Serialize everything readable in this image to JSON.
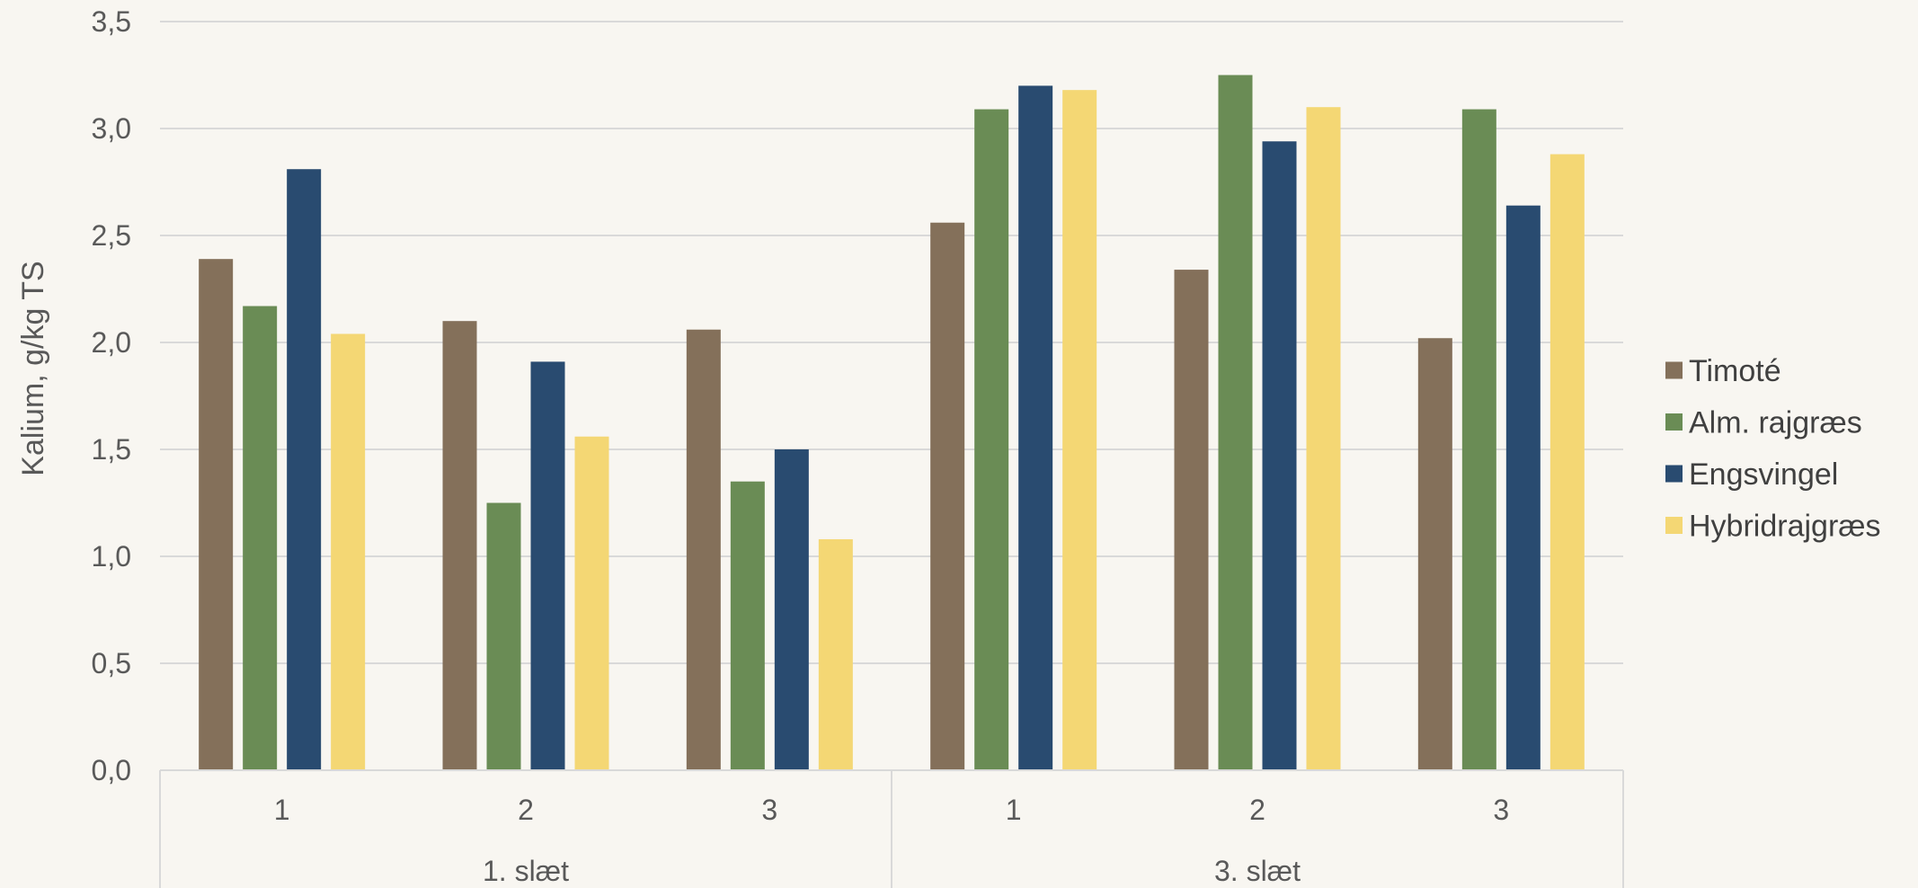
{
  "chart_data": {
    "type": "bar",
    "ylabel": "Kalium, g/kg TS",
    "ylim": [
      0,
      3.5
    ],
    "yticks": [
      "0,0",
      "0,5",
      "1,0",
      "1,5",
      "2,0",
      "2,5",
      "3,0",
      "3,5"
    ],
    "grid": true,
    "legend_position": "right",
    "groups": [
      {
        "label": "1. slæt",
        "categories": [
          "1",
          "2",
          "3"
        ]
      },
      {
        "label": "3. slæt",
        "categories": [
          "1",
          "2",
          "3"
        ]
      }
    ],
    "series": [
      {
        "name": "Timoté",
        "color": "#84705a",
        "values": [
          2.39,
          2.1,
          2.06,
          2.56,
          2.34,
          2.02
        ]
      },
      {
        "name": "Alm. rajgræs",
        "color": "#6a8c55",
        "values": [
          2.17,
          1.25,
          1.35,
          3.09,
          3.25,
          3.09
        ]
      },
      {
        "name": "Engsvingel",
        "color": "#294b70",
        "values": [
          2.81,
          1.91,
          1.5,
          3.2,
          2.94,
          2.64
        ]
      },
      {
        "name": "Hybridrajgræs",
        "color": "#f4d774",
        "values": [
          2.04,
          1.56,
          1.08,
          3.18,
          3.1,
          2.88
        ]
      }
    ]
  }
}
